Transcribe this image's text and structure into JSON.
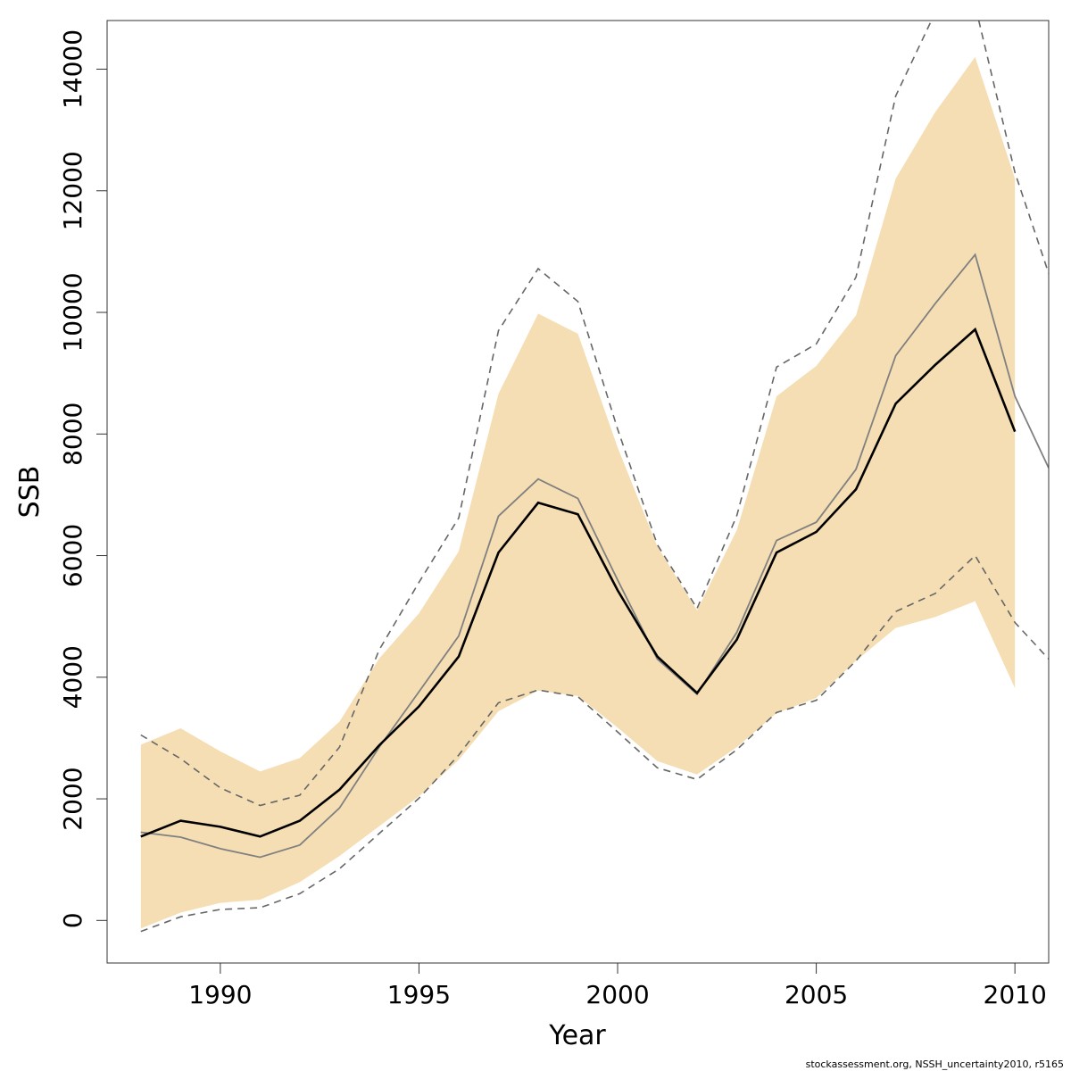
{
  "chart_data": {
    "type": "area",
    "xlabel": "Year",
    "ylabel": "SSB",
    "xlim": [
      1987.15,
      2010.85
    ],
    "ylim": [
      -700,
      14800
    ],
    "x_ticks": [
      1990,
      1995,
      2000,
      2005,
      2010
    ],
    "y_ticks": [
      0,
      2000,
      4000,
      6000,
      8000,
      10000,
      12000,
      14000
    ],
    "grid": false,
    "credit": "stockassessment.org, NSSH_uncertainty2010, r5165",
    "colors": {
      "band": "#f5deb3",
      "median": "#000000",
      "estimate": "#808080",
      "dashed": "#666666"
    },
    "years": [
      1988,
      1989,
      1990,
      1991,
      1992,
      1993,
      1994,
      1995,
      1996,
      1997,
      1998,
      1999,
      2000,
      2001,
      2002,
      2003,
      2004,
      2005,
      2006,
      2007,
      2008,
      2009,
      2010
    ],
    "series": [
      {
        "role": "band_upper",
        "values": [
          2890,
          3160,
          2780,
          2450,
          2670,
          3270,
          4310,
          5050,
          6070,
          8660,
          9980,
          9650,
          7780,
          6150,
          5100,
          6420,
          8620,
          9120,
          9950,
          12200,
          13300,
          14200,
          12200
        ]
      },
      {
        "role": "band_lower",
        "values": [
          -130,
          130,
          290,
          340,
          630,
          1060,
          1550,
          2040,
          2640,
          3440,
          3780,
          3690,
          3170,
          2620,
          2400,
          2850,
          3410,
          3660,
          4270,
          4810,
          4990,
          5250,
          3820
        ]
      },
      {
        "role": "median",
        "values": [
          1380,
          1640,
          1540,
          1380,
          1640,
          2150,
          2880,
          3520,
          4340,
          6050,
          6870,
          6680,
          5430,
          4340,
          3740,
          4620,
          6050,
          6390,
          7090,
          8500,
          9140,
          9720,
          8040
        ]
      },
      {
        "role": "estimate",
        "values": [
          1450,
          1370,
          1180,
          1040,
          1240,
          1850,
          2850,
          3760,
          4680,
          6650,
          7260,
          6940,
          5600,
          4300,
          3720,
          4740,
          6250,
          6550,
          7420,
          9290,
          10150,
          10950,
          8620
        ],
        "extra": {
          "year": 2010.85,
          "value": 7440
        }
      },
      {
        "role": "dashed_upper",
        "values": [
          3050,
          2660,
          2180,
          1890,
          2060,
          2850,
          4450,
          5560,
          6620,
          9700,
          10720,
          10180,
          8080,
          6180,
          5130,
          6660,
          9100,
          9480,
          10580,
          13560,
          14940,
          15050,
          12300
        ],
        "extra": {
          "year": 2010.85,
          "value": 10640
        }
      },
      {
        "role": "dashed_lower",
        "values": [
          -180,
          60,
          180,
          210,
          440,
          850,
          1430,
          2010,
          2720,
          3580,
          3790,
          3680,
          3100,
          2510,
          2320,
          2810,
          3420,
          3620,
          4270,
          5080,
          5380,
          6000,
          4900
        ],
        "extra": {
          "year": 2010.85,
          "value": 4300
        }
      }
    ]
  }
}
